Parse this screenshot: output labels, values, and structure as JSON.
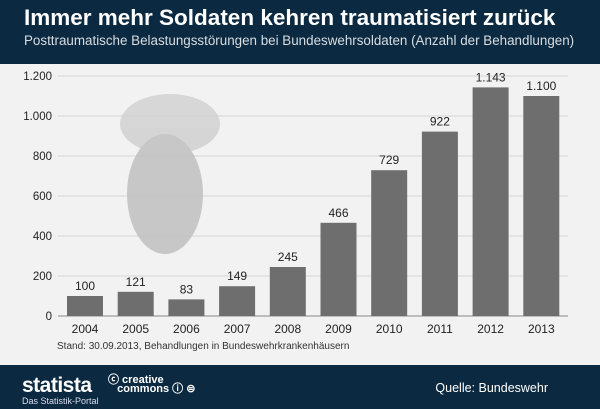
{
  "header": {
    "title": "Immer mehr Soldaten kehren traumatisiert zurück",
    "subtitle": "Posttraumatische Belastungsstörungen bei Bundeswehrsoldaten (Anzahl der Behandlungen)"
  },
  "chart_data": {
    "type": "bar",
    "title": "Immer mehr Soldaten kehren traumatisiert zurück",
    "subtitle": "Posttraumatische Belastungsstörungen bei Bundeswehrsoldaten (Anzahl der Behandlungen)",
    "categories": [
      "2004",
      "2005",
      "2006",
      "2007",
      "2008",
      "2009",
      "2010",
      "2011",
      "2012",
      "2013"
    ],
    "values": [
      100,
      121,
      83,
      149,
      245,
      466,
      729,
      922,
      1143,
      1100
    ],
    "value_labels": [
      "100",
      "121",
      "83",
      "149",
      "245",
      "466",
      "729",
      "922",
      "1.143",
      "1.100"
    ],
    "ylim": [
      0,
      1200
    ],
    "yticks": [
      0,
      200,
      400,
      600,
      800,
      1000,
      1200
    ],
    "ytick_labels": [
      "0",
      "200",
      "400",
      "600",
      "800",
      "1.000",
      "1.200"
    ],
    "grid": true,
    "bar_color": "#6e6e6e"
  },
  "note": "Stand: 30.09.2013, Behandlungen in Bundeswehrkrankenhäusern",
  "footer": {
    "logo": "statista",
    "logo_sub": "Das Statistik-Portal",
    "license": "creative commons",
    "source": "Quelle: Bundeswehr"
  }
}
